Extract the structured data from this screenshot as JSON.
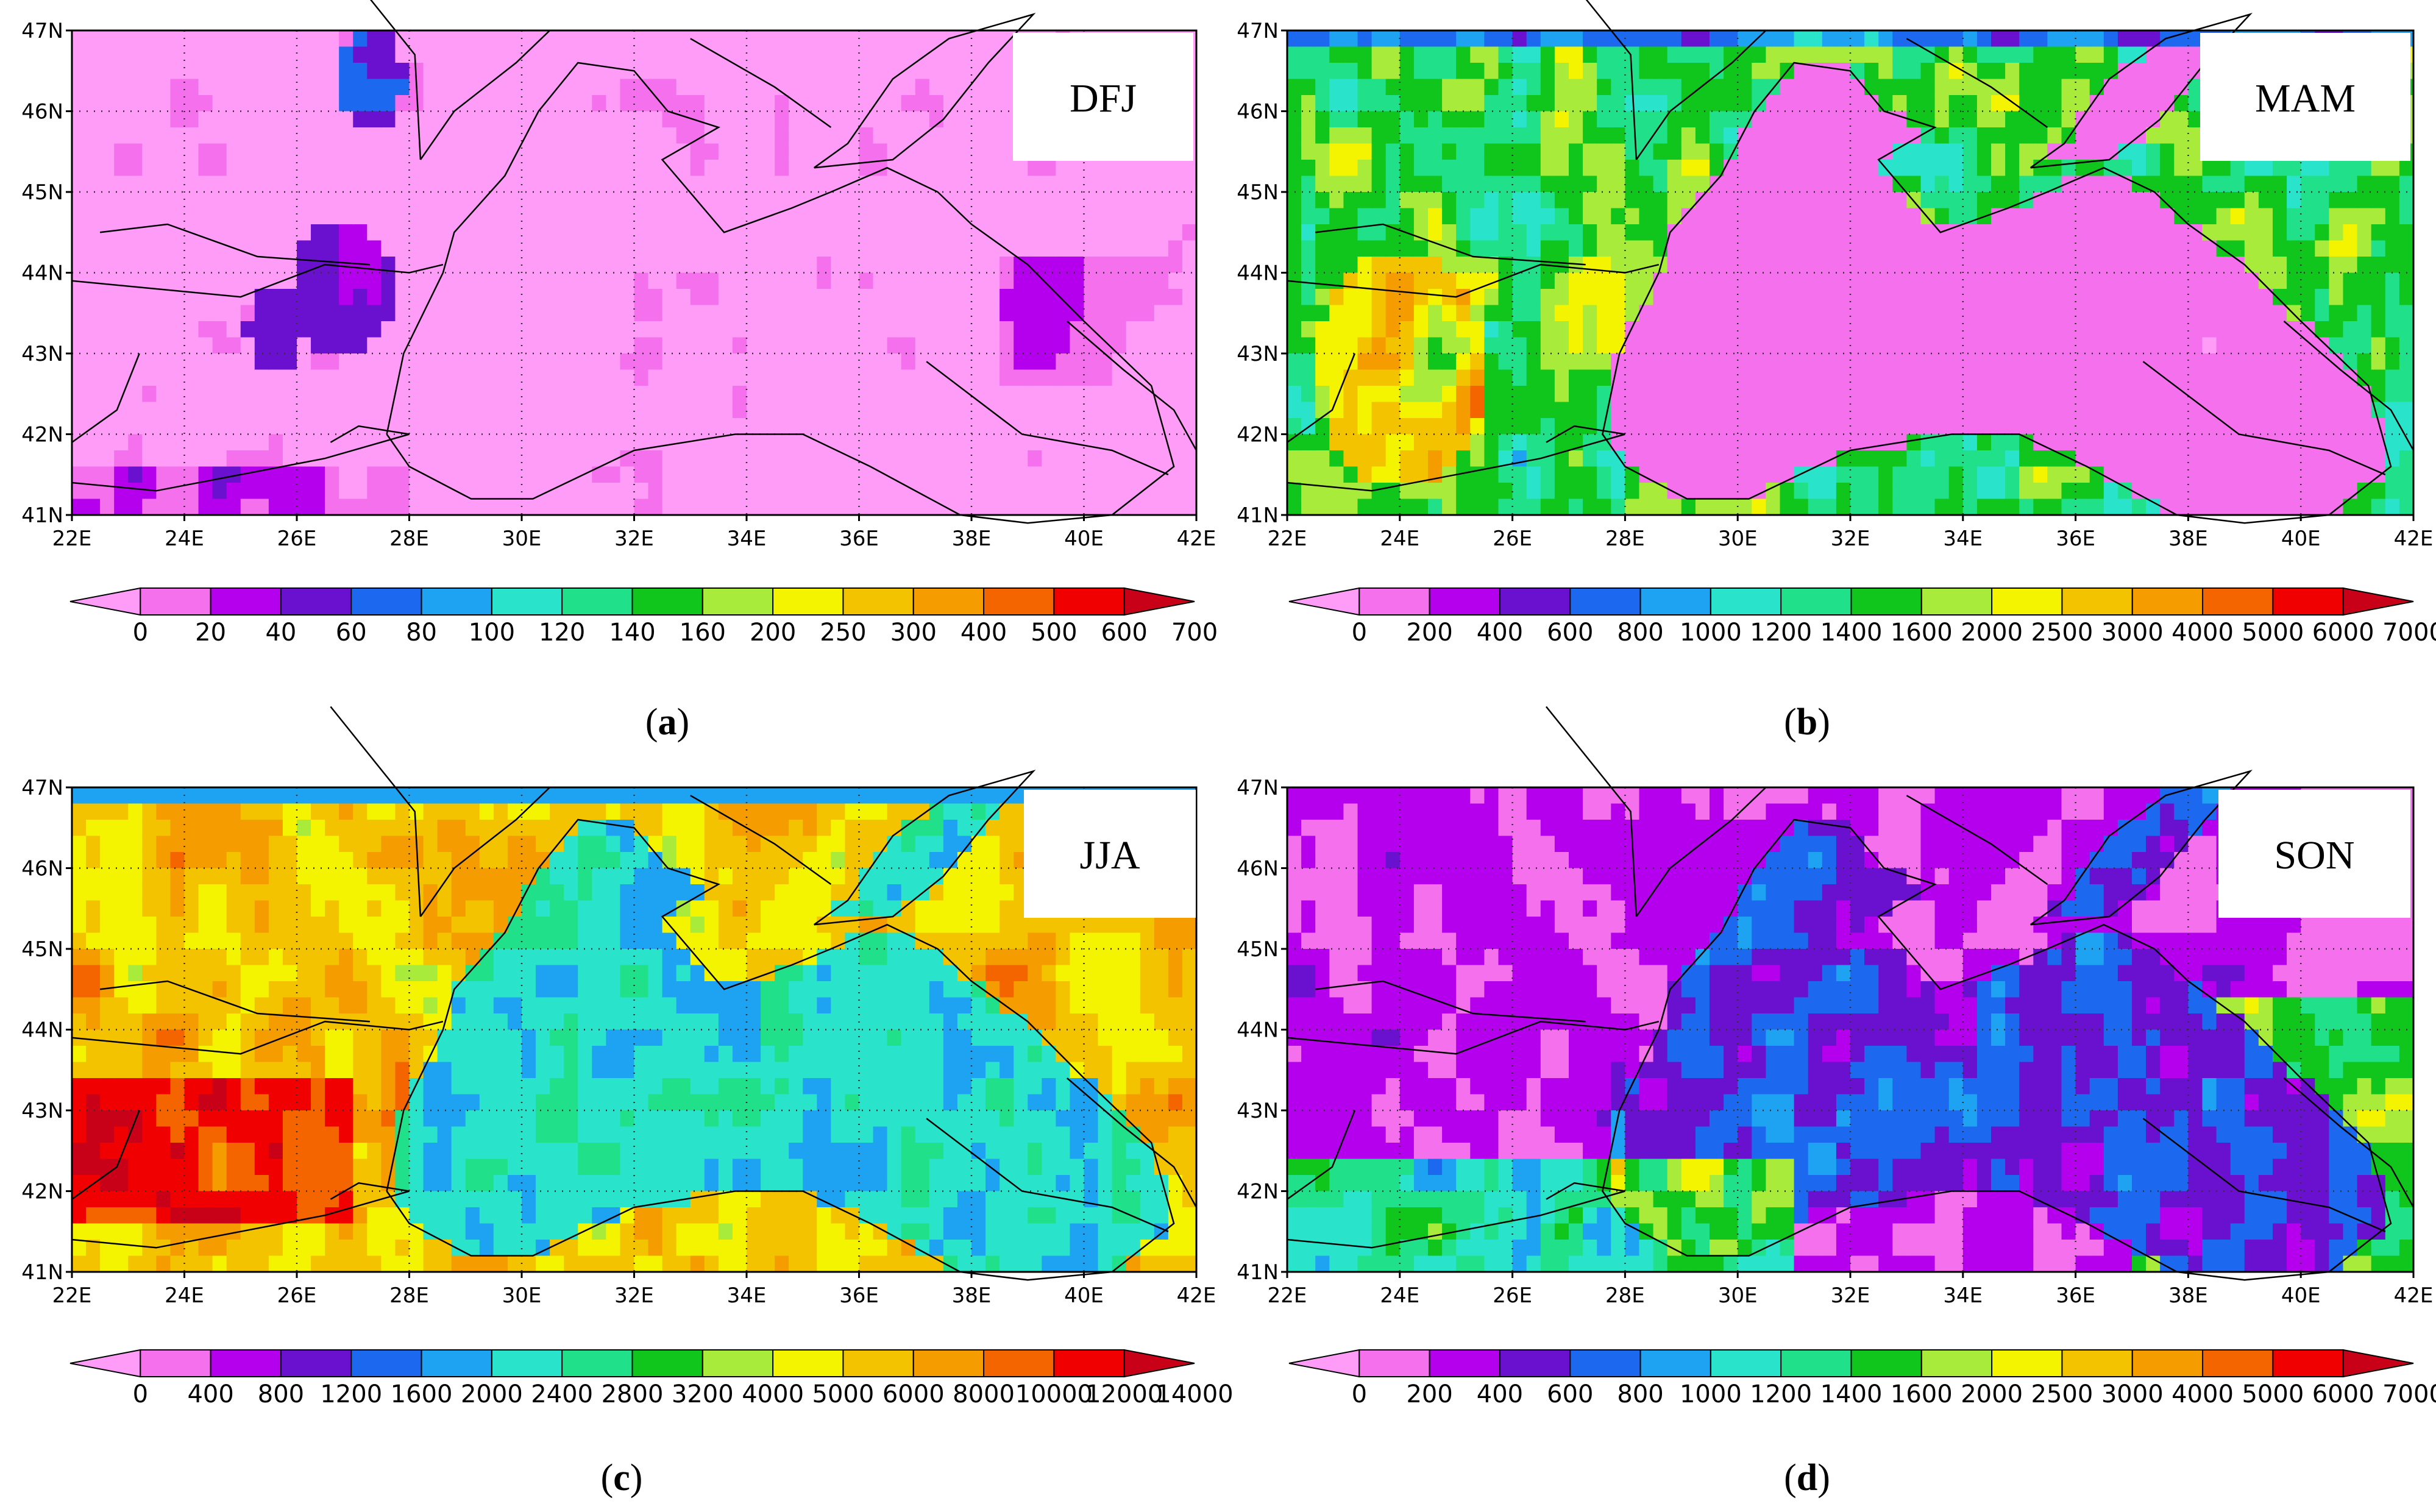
{
  "palette": [
    "#ff9cf8",
    "#f570ed",
    "#b500ee",
    "#6a10cf",
    "#1c68ef",
    "#1ea3f2",
    "#29e4ca",
    "#20e08a",
    "#10c51b",
    "#a8eb3a",
    "#f4f400",
    "#f4c300",
    "#f59c00",
    "#f46500",
    "#f00000",
    "#c80018"
  ],
  "axes": {
    "lon_labels": [
      "22E",
      "24E",
      "26E",
      "28E",
      "30E",
      "32E",
      "34E",
      "36E",
      "38E",
      "40E",
      "42E"
    ],
    "lat_labels": [
      "41N",
      "42N",
      "43N",
      "44N",
      "45N",
      "46N",
      "47N"
    ]
  },
  "panels": [
    {
      "id": "a",
      "season": "DFJ",
      "caption_letter": "a",
      "colorbar_labels": [
        "0",
        "20",
        "40",
        "60",
        "80",
        "100",
        "120",
        "140",
        "160",
        "200",
        "250",
        "300",
        "400",
        "500",
        "600",
        "700"
      ],
      "field": "low"
    },
    {
      "id": "b",
      "season": "MAM",
      "caption_letter": "b",
      "colorbar_labels": [
        "0",
        "200",
        "400",
        "600",
        "800",
        "1000",
        "1200",
        "1400",
        "1600",
        "2000",
        "2500",
        "3000",
        "4000",
        "5000",
        "6000",
        "7000"
      ],
      "field": "land-high"
    },
    {
      "id": "c",
      "season": "JJA",
      "caption_letter": "c",
      "colorbar_labels": [
        "0",
        "400",
        "800",
        "1200",
        "1600",
        "2000",
        "2400",
        "2800",
        "3200",
        "4000",
        "5000",
        "6000",
        "8000",
        "10000",
        "12000",
        "14000"
      ],
      "field": "summer"
    },
    {
      "id": "d",
      "season": "SON",
      "caption_letter": "d",
      "colorbar_labels": [
        "0",
        "200",
        "400",
        "600",
        "800",
        "1000",
        "1200",
        "1400",
        "1600",
        "2000",
        "2500",
        "3000",
        "4000",
        "5000",
        "6000",
        "7000"
      ],
      "field": "autumn"
    }
  ]
}
